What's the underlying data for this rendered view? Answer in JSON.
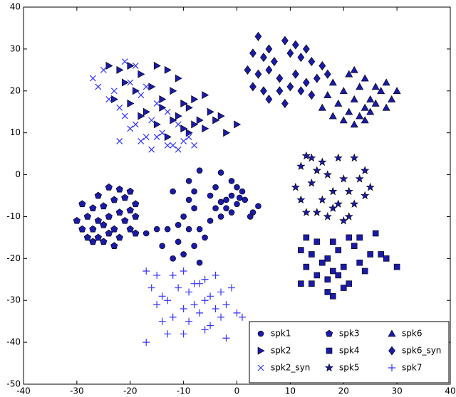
{
  "chart_data": {
    "type": "scatter",
    "xlim": [
      -40,
      40
    ],
    "xticks": [
      -40,
      -30,
      -20,
      -10,
      0,
      10,
      20,
      30,
      40
    ],
    "ylim": [
      -50,
      40
    ],
    "yticks": [
      -50,
      -40,
      -30,
      -20,
      -10,
      0,
      10,
      20,
      30,
      40
    ],
    "grid": false,
    "legend": "lower right",
    "series": [
      {
        "name": "spk1",
        "marker": "o",
        "color": "#1a1aa8",
        "x": [
          -7,
          -3,
          -9,
          -4,
          -1,
          0,
          1,
          0.5,
          -1,
          -2,
          -3,
          -5,
          -8,
          -12,
          -9,
          -4,
          -2,
          0,
          1.5,
          -1,
          -3,
          -5,
          -8,
          -10,
          -7,
          -9,
          -11,
          -13,
          -15,
          -17,
          -11,
          -14,
          -8,
          -6,
          -10,
          -12,
          -7,
          3,
          4,
          2.5
        ],
        "y": [
          1,
          0.5,
          -1.5,
          -3,
          -1.5,
          -3,
          -4,
          -5.5,
          -5,
          -6,
          -6.5,
          -5,
          -4,
          -4,
          -6,
          -8,
          -8,
          -7,
          -6,
          -9,
          -10,
          -11,
          -8,
          -10,
          -13,
          -13,
          -12,
          -13,
          -13,
          -14,
          -16,
          -17,
          -17,
          -15,
          -19,
          -20,
          -21,
          -9,
          -7.5,
          -10
        ]
      },
      {
        "name": "spk2",
        "marker": ">",
        "color": "#1a1aa8",
        "x": [
          -24,
          -22,
          -20,
          -18,
          -15,
          -13,
          -11,
          -21,
          -19,
          -16,
          -14,
          -12,
          -10,
          -8,
          -6,
          -23,
          -20,
          -17,
          -14,
          -11,
          -9,
          -7,
          -5,
          -3,
          -18,
          -15,
          -12,
          -10,
          -8,
          -6,
          -4,
          -2,
          0,
          -13,
          -9
        ],
        "y": [
          26,
          25,
          26,
          24,
          26,
          25,
          23,
          22,
          20,
          21,
          18,
          20,
          17,
          18,
          19,
          18,
          17,
          15,
          16,
          14,
          16,
          13,
          15,
          14,
          14,
          12,
          13,
          11,
          12,
          11,
          13,
          10,
          12,
          9,
          10
        ]
      },
      {
        "name": "spk2_syn",
        "marker": "x",
        "color": "#3333ff",
        "x": [
          -27,
          -25,
          -21,
          -19,
          -26,
          -23,
          -20,
          -17,
          -24,
          -22,
          -18,
          -15,
          -21,
          -19,
          -16,
          -13,
          -20,
          -17,
          -14,
          -11,
          -22,
          -18,
          -15,
          -12,
          -9,
          -16,
          -13,
          -10,
          -8,
          -11
        ],
        "y": [
          23,
          25,
          27,
          26,
          21,
          20,
          22,
          21,
          18,
          16,
          19,
          17,
          14,
          12,
          13,
          15,
          11,
          9,
          10,
          12,
          8,
          8,
          9,
          7,
          9,
          6,
          7,
          8,
          7,
          6
        ]
      },
      {
        "name": "spk3",
        "marker": "p",
        "color": "#1a1aa8",
        "x": [
          -24,
          -22,
          -20,
          -26,
          -23,
          -21,
          -19,
          -29,
          -27,
          -25,
          -22,
          -20,
          -30,
          -28,
          -26,
          -24,
          -21,
          -19,
          -29,
          -27,
          -25,
          -23,
          -20,
          -28,
          -26,
          -24,
          -22,
          -19,
          -27,
          -25,
          -23
        ],
        "y": [
          -3,
          -3.5,
          -4,
          -5,
          -6,
          -5.5,
          -7,
          -7,
          -8,
          -7.5,
          -9,
          -8.5,
          -11,
          -10,
          -11,
          -10,
          -11,
          -10,
          -13,
          -13,
          -12,
          -13,
          -13,
          -15,
          -15,
          -14,
          -15,
          -14,
          -16,
          -16,
          -17
        ]
      },
      {
        "name": "spk4",
        "marker": "s",
        "color": "#1a1aa8",
        "x": [
          13,
          15,
          18,
          21,
          23,
          26,
          12,
          14,
          17,
          19,
          22,
          25,
          28,
          13,
          16,
          18,
          20,
          23,
          27,
          30,
          15,
          17,
          19,
          21,
          24,
          14,
          17,
          20,
          12,
          18
        ],
        "y": [
          -15,
          -16,
          -16,
          -15,
          -15,
          -14,
          -18,
          -19,
          -20,
          -18,
          -17,
          -19,
          -20,
          -22,
          -21,
          -23,
          -22,
          -21,
          -19,
          -22,
          -24,
          -25,
          -24,
          -26,
          -23,
          -26,
          -28,
          -27,
          -26,
          -29
        ]
      },
      {
        "name": "spk5",
        "marker": "*",
        "color": "#1a1aa8",
        "x": [
          13,
          14,
          16,
          19,
          22,
          24,
          12,
          15,
          17,
          20,
          23,
          25,
          11,
          14,
          18,
          21,
          24,
          12,
          16,
          19,
          22,
          15,
          18,
          21,
          13,
          17,
          20
        ],
        "y": [
          4.5,
          4,
          3,
          4,
          4,
          1,
          2,
          1,
          0,
          -1,
          -1,
          -3,
          -3,
          -2,
          -4,
          -4,
          -5,
          -6,
          -6,
          -7,
          -7,
          -9,
          -8,
          -10,
          -9,
          -10,
          -11
        ]
      },
      {
        "name": "spk6",
        "marker": "^",
        "color": "#1a1aa8",
        "x": [
          22,
          24,
          18,
          21,
          26,
          28,
          17,
          20,
          23,
          25,
          27,
          30,
          16,
          19,
          22,
          24,
          26,
          29,
          18,
          21,
          23,
          25,
          28,
          20,
          22,
          24
        ],
        "y": [
          25,
          23,
          22,
          24,
          21,
          22,
          19,
          20,
          21,
          18,
          20,
          20,
          16,
          17,
          18,
          16,
          17,
          18,
          14,
          15,
          14,
          15,
          16,
          13,
          12,
          13
        ]
      },
      {
        "name": "spk6_syn",
        "marker": "D",
        "color": "#1a1aa8",
        "x": [
          4,
          6,
          9,
          11,
          13,
          3,
          5,
          7,
          10,
          12,
          14,
          16,
          2,
          4,
          6,
          8,
          11,
          13,
          15,
          17,
          3,
          5,
          8,
          10,
          12,
          14,
          9,
          6
        ],
        "y": [
          33,
          30,
          32,
          31,
          30,
          29,
          28,
          27,
          29,
          28,
          27,
          26,
          25,
          24,
          25,
          23,
          24,
          22,
          23,
          24,
          21,
          20,
          20,
          21,
          20,
          19,
          17,
          18
        ]
      },
      {
        "name": "spk7",
        "marker": "+",
        "color": "#3333ff",
        "x": [
          -17,
          -15,
          -12,
          -10,
          -8,
          -6,
          -4,
          -16,
          -14,
          -11,
          -9,
          -7,
          -5,
          -3,
          -1,
          -15,
          -13,
          -10,
          -8,
          -6,
          -4,
          -2,
          0,
          1,
          -14,
          -12,
          -9,
          -7,
          -5,
          -3,
          -17,
          -13,
          -10,
          -6,
          -2
        ],
        "y": [
          -23,
          -24,
          -24,
          -23,
          -26,
          -25,
          -24,
          -27,
          -29,
          -27,
          -28,
          -26,
          -29,
          -28,
          -27,
          -31,
          -30,
          -32,
          -31,
          -30,
          -32,
          -31,
          -33,
          -34,
          -35,
          -34,
          -35,
          -33,
          -36,
          -34,
          -40,
          -38,
          -38,
          -37,
          -39
        ]
      }
    ]
  }
}
